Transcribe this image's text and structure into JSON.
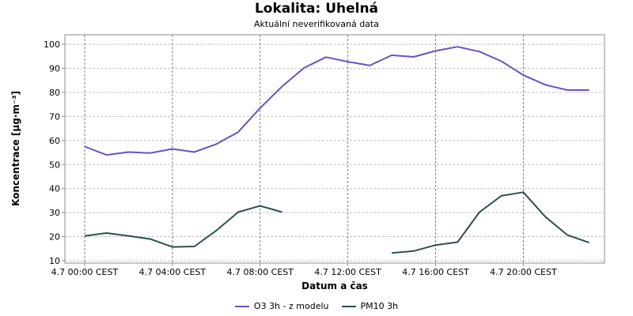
{
  "colors": {
    "o3": "#6a51c6",
    "pm10": "#2f4f4f"
  },
  "chart_data": {
    "type": "line",
    "title": "Lokalita: Uhelná",
    "subtitle": "Aktuální neverifikovaná data",
    "xlabel": "Datum a čas",
    "ylabel": "Koncentrace [µg·m⁻³]",
    "ylim": [
      9,
      104
    ],
    "yticks": [
      10,
      20,
      30,
      40,
      50,
      60,
      70,
      80,
      90,
      100
    ],
    "xlim": [
      -0.9,
      23.7
    ],
    "xticks": [
      {
        "hour": 0,
        "label": "4.7 00:00 CEST"
      },
      {
        "hour": 4,
        "label": "4.7 04:00 CEST"
      },
      {
        "hour": 8,
        "label": "4.7 08:00 CEST"
      },
      {
        "hour": 12,
        "label": "4.7 12:00 CEST"
      },
      {
        "hour": 16,
        "label": "4.7 16:00 CEST"
      },
      {
        "hour": 20,
        "label": "4.7 20:00 CEST"
      }
    ],
    "grid": true,
    "legend_position": "bottom",
    "series": [
      {
        "name": "O3 3h - z modelu",
        "x": [
          0,
          1,
          2,
          3,
          4,
          5,
          6,
          7,
          8,
          9,
          10,
          11,
          12,
          13,
          14,
          15,
          16,
          17,
          18,
          19,
          20,
          21,
          22,
          23
        ],
        "values": [
          57.5,
          54.0,
          55.2,
          54.8,
          56.5,
          55.2,
          58.5,
          63.5,
          73.5,
          82.5,
          90.2,
          94.7,
          92.8,
          91.2,
          95.5,
          94.8,
          97.3,
          99.0,
          97.0,
          93.0,
          87.2,
          83.2,
          81.0,
          81.0
        ]
      },
      {
        "name": "PM10 3h",
        "x": [
          0,
          1,
          2,
          3,
          4,
          5,
          6,
          7,
          8,
          9,
          10,
          11,
          12,
          13,
          14,
          15,
          16,
          17,
          18,
          19,
          20,
          21,
          22,
          23
        ],
        "values": [
          20.3,
          21.5,
          20.3,
          19.0,
          15.7,
          15.9,
          22.5,
          30.2,
          32.8,
          30.2,
          null,
          null,
          null,
          null,
          13.2,
          14.0,
          16.5,
          17.7,
          30.2,
          37.0,
          38.5,
          28.3,
          20.7,
          17.5
        ]
      }
    ]
  }
}
